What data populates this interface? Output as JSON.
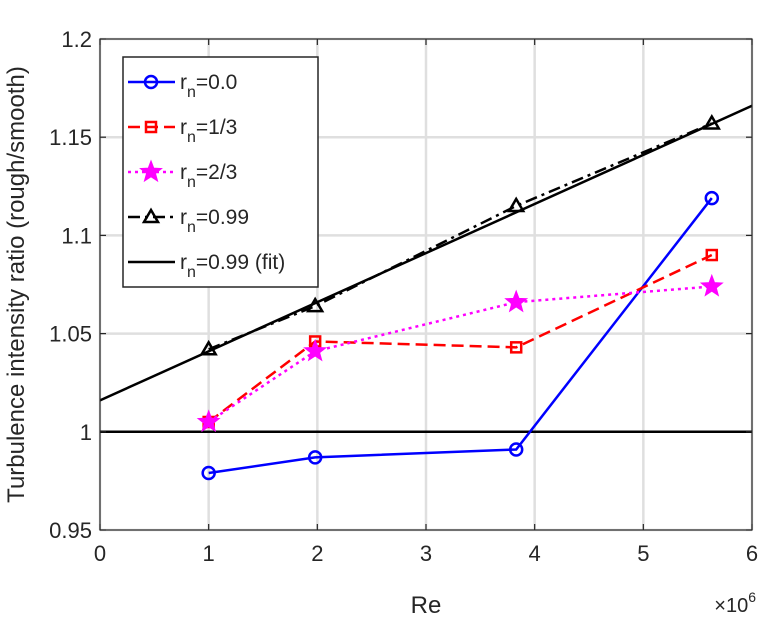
{
  "chart_data": {
    "type": "line",
    "xlabel": "Re",
    "ylabel": "Turbulence intensity ratio (rough/smooth)",
    "x_multiplier_base": "×10",
    "x_multiplier_exp": "6",
    "xlim": [
      0,
      6
    ],
    "ylim": [
      0.95,
      1.2
    ],
    "x_ticks": [
      0,
      1,
      2,
      3,
      4,
      5,
      6
    ],
    "y_ticks": [
      0.95,
      1,
      1.05,
      1.1,
      1.15,
      1.2
    ],
    "x_tick_labels": [
      "0",
      "1",
      "2",
      "3",
      "4",
      "5",
      "6"
    ],
    "y_tick_labels": [
      "0.95",
      "1",
      "1.05",
      "1.1",
      "1.15",
      "1.2"
    ],
    "grid": true,
    "legend_position": "top-left",
    "reference_line_y": 1,
    "series": [
      {
        "name": "r",
        "sub": "n",
        "suffix": "=0.0",
        "color": "#0000ff",
        "dash": "solid",
        "marker": "circle",
        "x": [
          1.0,
          1.98,
          3.83,
          5.63
        ],
        "y": [
          0.979,
          0.987,
          0.991,
          1.119
        ]
      },
      {
        "name": "r",
        "sub": "n",
        "suffix": "=1/3",
        "color": "#ff0000",
        "dash": "dashed",
        "marker": "square",
        "x": [
          1.0,
          1.98,
          3.83,
          5.63
        ],
        "y": [
          1.005,
          1.046,
          1.043,
          1.09
        ]
      },
      {
        "name": "r",
        "sub": "n",
        "suffix": "=2/3",
        "color": "#ff00ff",
        "dash": "dotted",
        "marker": "star",
        "x": [
          1.0,
          1.98,
          3.83,
          5.63
        ],
        "y": [
          1.005,
          1.041,
          1.066,
          1.074
        ]
      },
      {
        "name": "r",
        "sub": "n",
        "suffix": "=0.99",
        "color": "#000000",
        "dash": "dashdot",
        "marker": "triangle",
        "x": [
          1.0,
          1.98,
          3.83,
          5.63
        ],
        "y": [
          1.042,
          1.064,
          1.115,
          1.157
        ]
      },
      {
        "name": "r",
        "sub": "n",
        "suffix": "=0.99 (fit)",
        "color": "#000000",
        "dash": "solid",
        "marker": "none",
        "x": [
          0,
          6
        ],
        "y": [
          1.016,
          1.166
        ]
      }
    ]
  }
}
